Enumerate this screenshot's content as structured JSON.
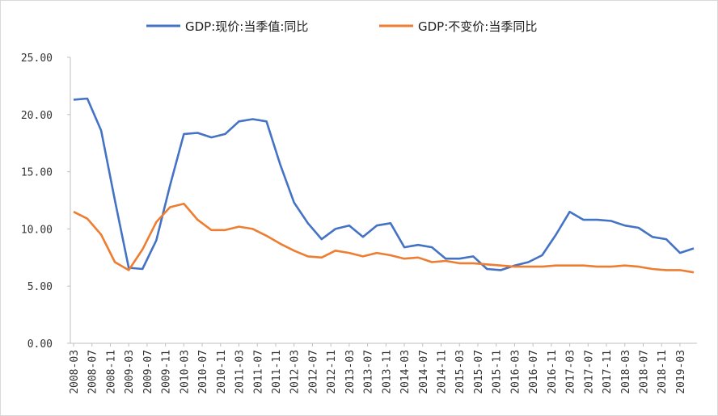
{
  "chart_data": {
    "type": "line",
    "title": "",
    "xlabel": "",
    "ylabel": "",
    "ylim": [
      0,
      25
    ],
    "yticks": [
      "0.00",
      "5.00",
      "10.00",
      "15.00",
      "20.00",
      "25.00"
    ],
    "grid": false,
    "legend_position": "top",
    "x": [
      "2008-03",
      "2008-06",
      "2008-09",
      "2008-12",
      "2009-03",
      "2009-06",
      "2009-09",
      "2009-12",
      "2010-03",
      "2010-06",
      "2010-09",
      "2010-12",
      "2011-03",
      "2011-06",
      "2011-09",
      "2011-12",
      "2012-03",
      "2012-06",
      "2012-09",
      "2012-12",
      "2013-03",
      "2013-06",
      "2013-09",
      "2013-12",
      "2014-03",
      "2014-06",
      "2014-09",
      "2014-12",
      "2015-03",
      "2015-06",
      "2015-09",
      "2015-12",
      "2016-03",
      "2016-06",
      "2016-09",
      "2016-12",
      "2017-03",
      "2017-06",
      "2017-09",
      "2017-12",
      "2018-03",
      "2018-06",
      "2018-09",
      "2018-12",
      "2019-03",
      "2019-06"
    ],
    "x_tick_labels": [
      "2008-03",
      "2008-07",
      "2008-11",
      "2009-03",
      "2009-07",
      "2009-11",
      "2010-03",
      "2010-07",
      "2010-11",
      "2011-03",
      "2011-07",
      "2011-11",
      "2012-03",
      "2012-07",
      "2012-11",
      "2013-03",
      "2013-07",
      "2013-11",
      "2014-03",
      "2014-07",
      "2014-11",
      "2015-03",
      "2015-07",
      "2015-11",
      "2016-03",
      "2016-07",
      "2016-11",
      "2017-03",
      "2017-07",
      "2017-11",
      "2018-03",
      "2018-07",
      "2018-11",
      "2019-03"
    ],
    "series": [
      {
        "name": "GDP:现价:当季值:同比",
        "color": "#4472C4",
        "values": [
          21.3,
          21.4,
          18.6,
          12.5,
          6.6,
          6.5,
          9.0,
          13.8,
          18.3,
          18.4,
          18.0,
          18.3,
          19.4,
          19.6,
          19.4,
          15.6,
          12.3,
          10.5,
          9.1,
          10.0,
          10.3,
          9.3,
          10.3,
          10.5,
          8.4,
          8.6,
          8.4,
          7.4,
          7.4,
          7.6,
          6.5,
          6.4,
          6.8,
          7.1,
          7.7,
          9.5,
          11.5,
          10.8,
          10.8,
          10.7,
          10.3,
          10.1,
          9.3,
          9.1,
          7.9,
          8.3
        ]
      },
      {
        "name": "GDP:不变价:当季同比",
        "color": "#ED7D31",
        "values": [
          11.5,
          10.9,
          9.5,
          7.1,
          6.4,
          8.2,
          10.6,
          11.9,
          12.2,
          10.8,
          9.9,
          9.9,
          10.2,
          10.0,
          9.4,
          8.7,
          8.1,
          7.6,
          7.5,
          8.1,
          7.9,
          7.6,
          7.9,
          7.7,
          7.4,
          7.5,
          7.1,
          7.2,
          7.0,
          7.0,
          6.9,
          6.8,
          6.7,
          6.7,
          6.7,
          6.8,
          6.8,
          6.8,
          6.7,
          6.7,
          6.8,
          6.7,
          6.5,
          6.4,
          6.4,
          6.2
        ]
      }
    ]
  }
}
